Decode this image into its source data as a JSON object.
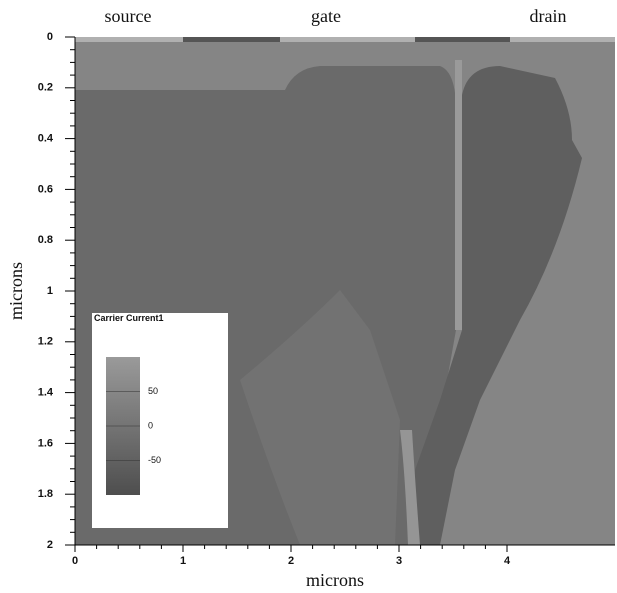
{
  "chart_data": {
    "type": "contour",
    "region_labels": [
      "source",
      "gate",
      "drain"
    ],
    "x_label": "microns",
    "y_label": "microns",
    "xlim": [
      0,
      5
    ],
    "ylim": [
      0,
      2
    ],
    "y_inverted": true,
    "xticks": [
      0,
      1,
      2,
      3,
      4
    ],
    "yticks": [
      0,
      0.2,
      0.4,
      0.6,
      0.8,
      1,
      1.2,
      1.4,
      1.6,
      1.8,
      2
    ],
    "colorbar": {
      "title": "Carrier Current1",
      "lim": [
        -100,
        100
      ],
      "ticks": [
        50,
        0,
        -50
      ]
    }
  }
}
